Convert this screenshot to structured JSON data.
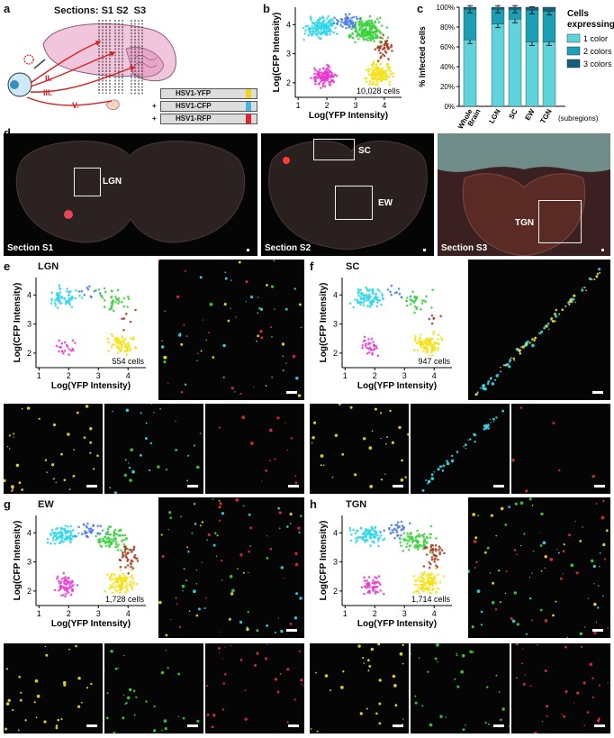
{
  "panel_letters": {
    "a": "a",
    "b": "b",
    "c": "c",
    "d": "d",
    "e": "e",
    "f": "f",
    "g": "g",
    "h": "h"
  },
  "panel_a": {
    "sections_label": "Sections: S1 S2  S3",
    "pathways": [
      "II.",
      "III.",
      "V."
    ],
    "constructs": [
      "HSV1-YFP",
      "HSV1-CFP",
      "HSV1-RFP"
    ],
    "plus_signs": [
      "+",
      "+"
    ],
    "colors": {
      "yfp": "#f2d21b",
      "cfp": "#3fb8e6",
      "rfp": "#e0262b"
    }
  },
  "panel_b": {
    "xlabel": "Log(YFP Intensity)",
    "ylabel": "Log(CFP Intensity)",
    "count": "10,028 cells",
    "xticks": [
      "1",
      "2",
      "3",
      "4"
    ],
    "yticks": [
      "2",
      "3",
      "4"
    ]
  },
  "panel_c": {
    "ylabel": "% Infected cells",
    "yticks": [
      "0%",
      "20%",
      "40%",
      "60%",
      "80%",
      "100%"
    ],
    "legend_title": "Cells expressing:",
    "legend": [
      {
        "label": "1 color",
        "color": "#5fd3dc"
      },
      {
        "label": "2 colors",
        "color": "#1a9fb5"
      },
      {
        "label": "3 colors",
        "color": "#155f7a"
      }
    ],
    "subregions_label": "(subregions)",
    "chart_data": {
      "type": "bar",
      "categories": [
        "Whole Brain",
        "LGN",
        "SC",
        "EW",
        "TGN"
      ],
      "ylabel": "% Infected cells",
      "ylim": [
        0,
        100
      ],
      "series": [
        {
          "name": "1 color",
          "values": [
            67,
            83,
            88,
            65,
            65
          ]
        },
        {
          "name": "2 colors",
          "values": [
            31,
            15,
            10,
            32,
            31
          ]
        },
        {
          "name": "3 colors",
          "values": [
            2,
            2,
            2,
            3,
            4
          ]
        }
      ]
    }
  },
  "panel_d": {
    "sections": [
      "Section S1",
      "Section S2",
      "Section S3"
    ],
    "regions": [
      "LGN",
      "SC",
      "EW",
      "TGN"
    ]
  },
  "scatter_panels": [
    {
      "region": "LGN",
      "count": "554 cells"
    },
    {
      "region": "SC",
      "count": "947 cells"
    },
    {
      "region": "EW",
      "count": "1,728 cells"
    },
    {
      "region": "TGN",
      "count": "1,714 cells"
    }
  ],
  "axis": {
    "xlabel": "Log(YFP Intensity)",
    "ylabel": "Log(CFP Intensity)",
    "xticks": [
      "1",
      "2",
      "3",
      "4"
    ],
    "yticks": [
      "2",
      "3",
      "4"
    ]
  }
}
